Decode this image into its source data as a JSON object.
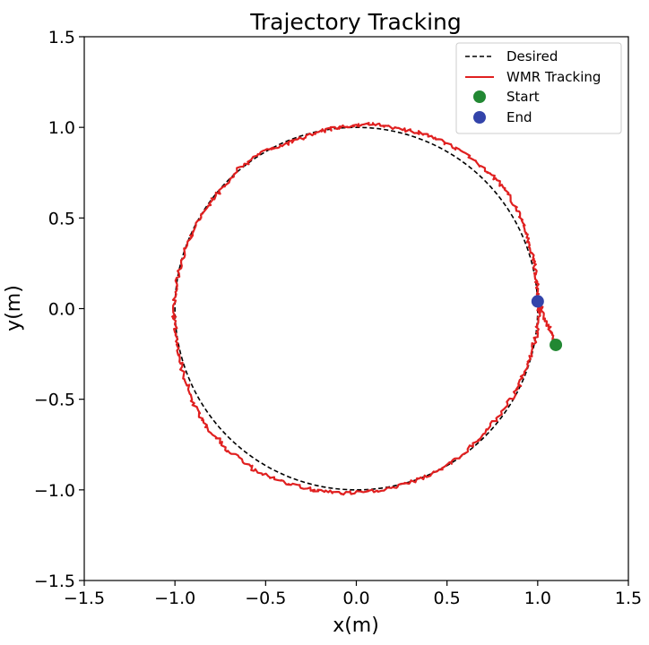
{
  "chart_data": {
    "type": "line",
    "title": "Trajectory Tracking",
    "xlabel": "x(m)",
    "ylabel": "y(m)",
    "xlim": [
      -1.5,
      1.5
    ],
    "ylim": [
      -1.5,
      1.5
    ],
    "grid": false,
    "legend_position": "top-right",
    "x_ticks": [
      -1.5,
      -1.0,
      -0.5,
      0.0,
      0.5,
      1.0,
      1.5
    ],
    "y_ticks": [
      -1.5,
      -1.0,
      -0.5,
      0.0,
      0.5,
      1.0,
      1.5
    ],
    "x_tick_labels": [
      "−1.5",
      "−1.0",
      "−0.5",
      "0.0",
      "0.5",
      "1.0",
      "1.5"
    ],
    "y_tick_labels": [
      "−1.5",
      "−1.0",
      "−0.5",
      "0.0",
      "0.5",
      "1.0",
      "1.5"
    ],
    "series": [
      {
        "name": "Desired",
        "style": "dashed",
        "color": "#000000",
        "shape": "circle",
        "center": [
          0.0,
          0.0
        ],
        "radius": 1.0
      },
      {
        "name": "WMR Tracking",
        "style": "solid",
        "color": "#e02020",
        "x": [
          1.1,
          1.06,
          1.02,
          1.01,
          0.99,
          0.98,
          0.94,
          0.9,
          0.82,
          0.72,
          0.6,
          0.48,
          0.35,
          0.2,
          0.1,
          0.0,
          -0.1,
          -0.22,
          -0.36,
          -0.5,
          -0.64,
          -0.78,
          -0.86,
          -0.94,
          -0.99,
          -1.01,
          -0.99,
          -0.96,
          -0.9,
          -0.82,
          -0.7,
          -0.56,
          -0.4,
          -0.24,
          -0.08,
          0.08,
          0.24,
          0.4,
          0.54,
          0.68,
          0.8,
          0.89,
          0.95,
          0.99,
          1.01,
          1.0
        ],
        "y": [
          -0.2,
          -0.1,
          0.0,
          0.04,
          0.18,
          0.28,
          0.4,
          0.52,
          0.66,
          0.76,
          0.86,
          0.92,
          0.97,
          1.0,
          1.02,
          1.01,
          1.0,
          0.97,
          0.92,
          0.87,
          0.78,
          0.62,
          0.5,
          0.34,
          0.15,
          0.0,
          -0.18,
          -0.34,
          -0.52,
          -0.66,
          -0.79,
          -0.89,
          -0.96,
          -1.0,
          -1.02,
          -1.01,
          -0.98,
          -0.92,
          -0.84,
          -0.72,
          -0.58,
          -0.44,
          -0.3,
          -0.16,
          -0.04,
          0.04
        ]
      },
      {
        "name": "Start",
        "type": "scatter",
        "color": "#228833",
        "x": [
          1.1
        ],
        "y": [
          -0.2
        ]
      },
      {
        "name": "End",
        "type": "scatter",
        "color": "#3344aa",
        "x": [
          1.0
        ],
        "y": [
          0.04
        ]
      }
    ]
  }
}
